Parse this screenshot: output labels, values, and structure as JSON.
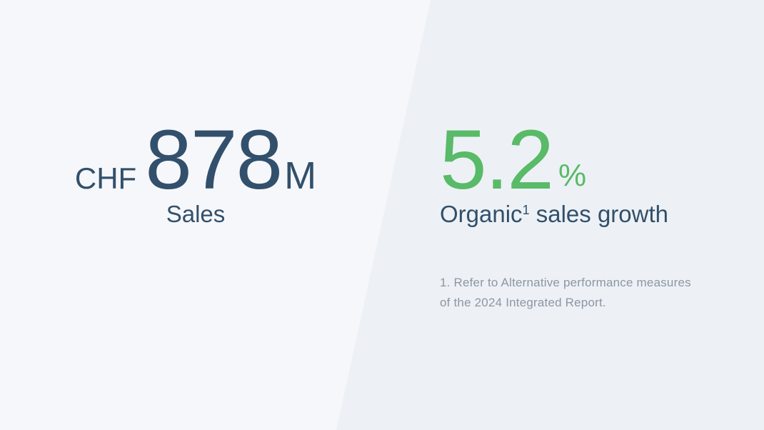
{
  "slide": {
    "left_stat": {
      "currency": "CHF",
      "value": "878",
      "unit": "M",
      "label": "Sales"
    },
    "right_stat": {
      "value": "5.2",
      "unit": "%",
      "label_prefix": "Organic",
      "footnote_ref": "1",
      "label_suffix": " sales growth"
    },
    "footnote": {
      "lines": [
        "1. Refer to Alternative performance measures",
        "of the 2024 Integrated Report."
      ]
    }
  },
  "colors": {
    "navy": "#32506B",
    "green": "#59BA68",
    "bg_left": "#F6F7FB",
    "bg_right": "#EDF1F5",
    "footnote_gray": "#8D96A4"
  }
}
